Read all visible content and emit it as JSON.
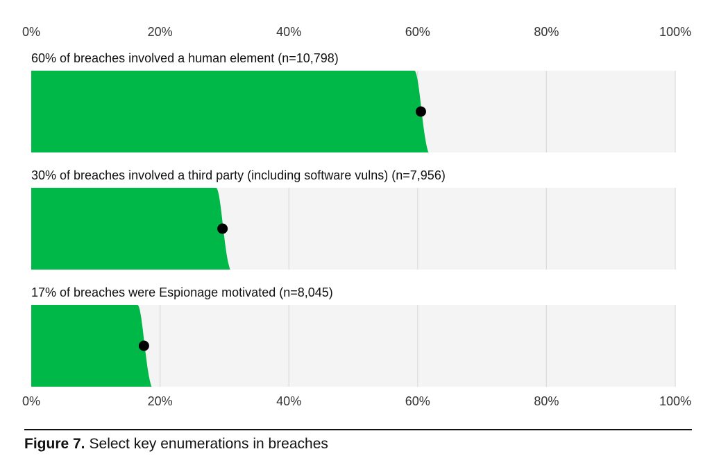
{
  "chart_data": {
    "type": "bar",
    "categories": [
      "60% of breaches involved a human element (n=10,798)",
      "30% of breaches involved a third party (including software vulns) (n=7,956)",
      "17% of breaches were Espionage motivated (n=8,045)"
    ],
    "values": [
      60.5,
      29.7,
      17.5
    ],
    "color": "#00b847",
    "xlim": [
      0,
      100
    ],
    "xticks": [
      {
        "value": 0,
        "label": "0%"
      },
      {
        "value": 20,
        "label": "20%"
      },
      {
        "value": 40,
        "label": "40%"
      },
      {
        "value": 60,
        "label": "60%"
      },
      {
        "value": 80,
        "label": "80%"
      },
      {
        "value": 100,
        "label": "100%"
      }
    ],
    "grid": true
  },
  "figure": {
    "label": "Figure 7.",
    "caption": "Select key enumerations in breaches"
  }
}
